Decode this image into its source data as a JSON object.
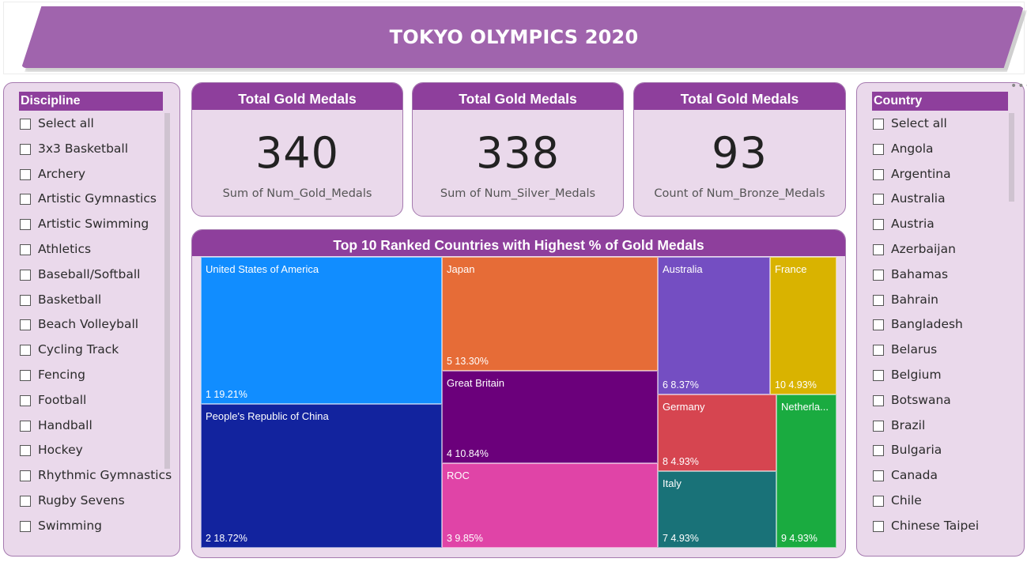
{
  "header": {
    "title": "TOKYO OLYMPICS 2020"
  },
  "discipline_slicer": {
    "title": "Discipline",
    "items": [
      "Select all",
      "3x3 Basketball",
      "Archery",
      "Artistic Gymnastics",
      "Artistic Swimming",
      "Athletics",
      "Baseball/Softball",
      "Basketball",
      "Beach Volleyball",
      "Cycling Track",
      "Fencing",
      "Football",
      "Handball",
      "Hockey",
      "Rhythmic Gymnastics",
      "Rugby Sevens",
      "Swimming"
    ]
  },
  "country_slicer": {
    "title": "Country",
    "items": [
      "Select all",
      "Angola",
      "Argentina",
      "Australia",
      "Austria",
      "Azerbaijan",
      "Bahamas",
      "Bahrain",
      "Bangladesh",
      "Belarus",
      "Belgium",
      "Botswana",
      "Brazil",
      "Bulgaria",
      "Canada",
      "Chile",
      "Chinese Taipei"
    ]
  },
  "cards": [
    {
      "title": "Total Gold Medals",
      "value": "340",
      "caption": "Sum of Num_Gold_Medals"
    },
    {
      "title": "Total Gold Medals",
      "value": "338",
      "caption": "Sum of Num_Silver_Medals"
    },
    {
      "title": "Total Gold Medals",
      "value": "93",
      "caption": "Count of Num_Bronze_Medals"
    }
  ],
  "colors": {
    "banner": "#a064ad",
    "panel": "#ead9eb",
    "panel_header": "#8e3f9c",
    "usa": "#118dff",
    "china": "#12239e",
    "japan": "#e66c37",
    "great_britain": "#6b007b",
    "roc": "#e044a7",
    "australia": "#744ec2",
    "france": "#d9b300",
    "germany": "#d64550",
    "italy": "#197278",
    "netherlands": "#1aab40"
  },
  "chart_data": {
    "type": "treemap",
    "title": "Top 10 Ranked Countries with Highest % of Gold Medals",
    "items": [
      {
        "name": "United States of America",
        "rank": 1,
        "percent": 19.21,
        "label": "1 19.21%"
      },
      {
        "name": "People's Republic of China",
        "rank": 2,
        "percent": 18.72,
        "label": "2 18.72%"
      },
      {
        "name": "Japan",
        "rank": 5,
        "percent": 13.3,
        "label": "5 13.30%"
      },
      {
        "name": "Great Britain",
        "rank": 4,
        "percent": 10.84,
        "label": "4 10.84%"
      },
      {
        "name": "ROC",
        "rank": 3,
        "percent": 9.85,
        "label": "3 9.85%"
      },
      {
        "name": "Australia",
        "rank": 6,
        "percent": 8.37,
        "label": "6 8.37%"
      },
      {
        "name": "France",
        "rank": 10,
        "percent": 4.93,
        "label": "10 4.93%"
      },
      {
        "name": "Germany",
        "rank": 8,
        "percent": 4.93,
        "label": "8 4.93%"
      },
      {
        "name": "Italy",
        "rank": 7,
        "percent": 4.93,
        "label": "7 4.93%"
      },
      {
        "name": "Netherla...",
        "rank": 9,
        "percent": 4.93,
        "label": "9 4.93%"
      }
    ]
  }
}
